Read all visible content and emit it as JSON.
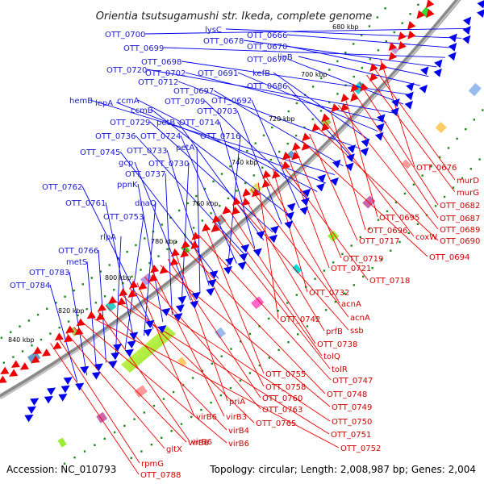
{
  "title": "Orientia tsutsugamushi str. Ikeda, complete genome",
  "accession": "Accession: NC_010793",
  "summary": "Topology: circular; Length: 2,008,987 bp; Genes: 2,004",
  "colors": {
    "forward": "#0000ee",
    "reverse": "#ee0000",
    "backbone": "#8a8a8a",
    "forward_label": "#1a1acc",
    "reverse_label": "#cc0000",
    "dots": "#1a8a1a"
  },
  "scale_marks": [
    "680 kbp",
    "700 kbp",
    "720 kbp",
    "740 kbp",
    "760 kbp",
    "780 kbp",
    "800 kbp",
    "820 kbp",
    "840 kbp"
  ],
  "forward_genes": [
    "OTT_0700",
    "lysC",
    "OTT_0666",
    "OTT_0699",
    "OTT_0678",
    "OTT_0670",
    "lipB",
    "OTT_0698",
    "OTT_0677",
    "OTT_0720",
    "OTT_0702",
    "OTT_0691",
    "kefB",
    "OTT_0712",
    "OTT_0686",
    "OTT_0697",
    "hemB",
    "lepA",
    "ccmA",
    "OTT_0709",
    "OTT_0692",
    "ccmB",
    "OTT_0703",
    "OTT_0729",
    "petB",
    "OTT_0714",
    "OTT_0736",
    "OTT_0724",
    "OTT_0716",
    "OTT_0745",
    "OTT_0733",
    "petA",
    "gcp",
    "OTT_0730",
    "OTT_0737",
    "ppnK",
    "OTT_0762",
    "dnaQ",
    "OTT_0761",
    "OTT_0753",
    "rlpA",
    "OTT_0766",
    "metS",
    "OTT_0783",
    "OTT_0784"
  ],
  "reverse_genes": [
    "OTT_0676",
    "murD",
    "murG",
    "OTT_0682",
    "OTT_0687",
    "OTT_0695",
    "OTT_0689",
    "OTT_0696",
    "coxW",
    "OTT_0690",
    "OTT_0717",
    "OTT_0694",
    "OTT_0719",
    "OTT_0721",
    "OTT_0718",
    "OTT_0732",
    "acnA",
    "OTT_0742",
    "acnA",
    "prfB",
    "ssb",
    "OTT_0738",
    "tolQ",
    "tolR",
    "OTT_0755",
    "OTT_0747",
    "OTT_0758",
    "OTT_0748",
    "priA",
    "OTT_0760",
    "OTT_0749",
    "virB3",
    "OTT_0763",
    "virB6",
    "OTT_0750",
    "OTT_0765",
    "OTT_0751",
    "virB4",
    "virB6",
    "OTT_0752",
    "virB6",
    "virB6",
    "gltX",
    "rpmG",
    "OTT_0788"
  ]
}
